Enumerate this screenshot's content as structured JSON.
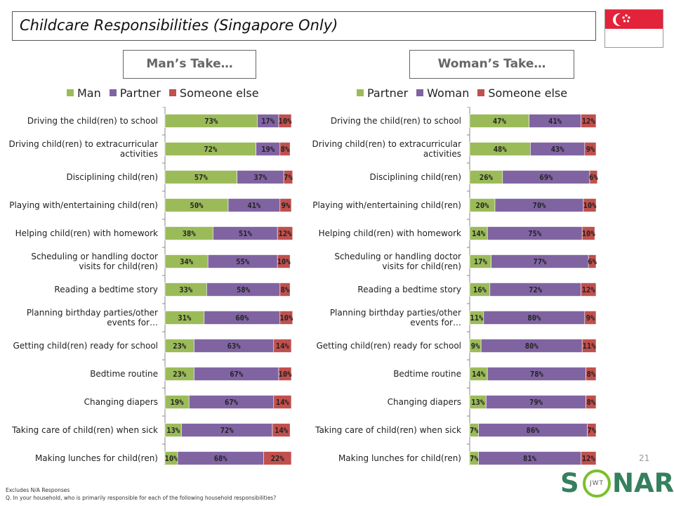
{
  "title": "Childcare Responsibilities (Singapore Only)",
  "page_number": "21",
  "footnote_1": "Excludes N/A Responses",
  "footnote_2": "Q. In your household, who is primarily responsible for each of the following household responsibilities?",
  "logo": {
    "left": "S",
    "middle": "JWT",
    "right": "NAR",
    "full": "SONAR"
  },
  "flag": "singapore-flag",
  "colors": {
    "green": "#9bbb59",
    "purple": "#8064a2",
    "red": "#c0504d"
  },
  "chart_data": [
    {
      "type": "bar",
      "stacked": "horizontal-100%",
      "title": "Man’s Take…",
      "legend_position": "top",
      "categories": [
        "Driving the child(ren) to school",
        "Driving child(ren) to extracurricular activities",
        "Disciplining child(ren)",
        "Playing with/entertaining child(ren)",
        "Helping child(ren) with homework",
        "Scheduling or handling doctor visits for child(ren)",
        "Reading a bedtime story",
        "Planning birthday parties/other events for…",
        "Getting child(ren) ready for school",
        "Bedtime routine",
        "Changing diapers",
        "Taking care of child(ren) when sick",
        "Making lunches for child(ren)"
      ],
      "series": [
        {
          "name": "Man",
          "color": "#9bbb59",
          "values": [
            73,
            72,
            57,
            50,
            38,
            34,
            33,
            31,
            23,
            23,
            19,
            13,
            10
          ]
        },
        {
          "name": "Partner",
          "color": "#8064a2",
          "values": [
            17,
            19,
            37,
            41,
            51,
            55,
            58,
            60,
            63,
            67,
            67,
            72,
            68
          ]
        },
        {
          "name": "Someone else",
          "color": "#c0504d",
          "values": [
            10,
            8,
            7,
            9,
            12,
            10,
            8,
            10,
            14,
            10,
            14,
            14,
            22
          ]
        }
      ]
    },
    {
      "type": "bar",
      "stacked": "horizontal-100%",
      "title": "Woman’s Take…",
      "legend_position": "top",
      "categories": [
        "Driving the child(ren) to school",
        "Driving child(ren) to extracurricular activities",
        "Disciplining child(ren)",
        "Playing with/entertaining child(ren)",
        "Helping child(ren) with homework",
        "Scheduling or handling doctor visits for child(ren)",
        "Reading a bedtime story",
        "Planning birthday parties/other events for…",
        "Getting child(ren) ready for school",
        "Bedtime routine",
        "Changing diapers",
        "Taking care of child(ren) when sick",
        "Making lunches for child(ren)"
      ],
      "series": [
        {
          "name": "Partner",
          "color": "#9bbb59",
          "values": [
            47,
            48,
            26,
            20,
            14,
            17,
            16,
            11,
            9,
            14,
            13,
            7,
            7
          ]
        },
        {
          "name": "Woman",
          "color": "#8064a2",
          "values": [
            41,
            43,
            69,
            70,
            75,
            77,
            72,
            80,
            80,
            78,
            79,
            86,
            81
          ]
        },
        {
          "name": "Someone else",
          "color": "#c0504d",
          "values": [
            12,
            9,
            6,
            10,
            10,
            6,
            12,
            9,
            11,
            8,
            8,
            7,
            12
          ]
        }
      ]
    }
  ]
}
